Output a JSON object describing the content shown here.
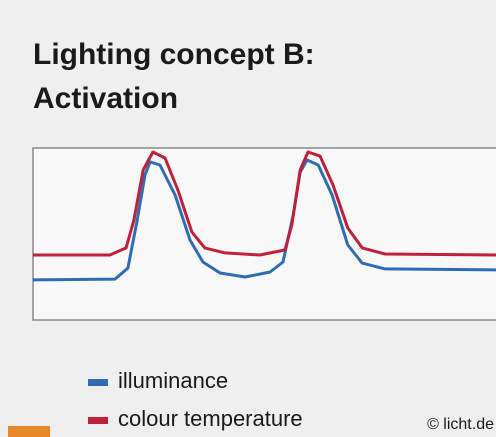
{
  "chart_data": {
    "type": "line",
    "title": "Lighting concept B:",
    "subtitle": "Activation",
    "credit": "© licht.de",
    "xlim": [
      0,
      100
    ],
    "ylim": [
      0,
      100
    ],
    "grid": false,
    "legend": "bottom-left",
    "series": [
      {
        "name": "illuminance",
        "color": "#2e6db5",
        "x": [
          0,
          17.7,
          20.5,
          22.5,
          24.2,
          25.3,
          27.4,
          30.7,
          33.9,
          36.7,
          40.4,
          45.8,
          51.2,
          54.0,
          56.2,
          57.7,
          59.2,
          61.6,
          64.6,
          68.0,
          71.1,
          76.0,
          100
        ],
        "values": [
          23.3,
          23.8,
          30.2,
          58.1,
          84.3,
          91.9,
          90.1,
          72.7,
          46.5,
          33.7,
          27.3,
          25.0,
          27.9,
          33.7,
          61.0,
          86.0,
          93.0,
          90.1,
          72.7,
          43.6,
          33.1,
          29.7,
          29.1
        ]
      },
      {
        "name": "colour temperature",
        "color": "#c0203a",
        "x": [
          0,
          16.6,
          20.1,
          21.8,
          23.8,
          25.9,
          28.5,
          31.3,
          34.3,
          37.1,
          41.5,
          49.0,
          54.4,
          55.9,
          57.7,
          59.4,
          62.0,
          64.8,
          68.0,
          71.1,
          76.0,
          100
        ],
        "values": [
          37.8,
          37.8,
          41.9,
          58.1,
          87.2,
          97.7,
          94.2,
          75.6,
          51.2,
          41.9,
          39.0,
          37.8,
          40.7,
          55.2,
          87.2,
          97.7,
          95.3,
          78.5,
          53.5,
          41.9,
          38.4,
          37.8
        ]
      }
    ]
  }
}
